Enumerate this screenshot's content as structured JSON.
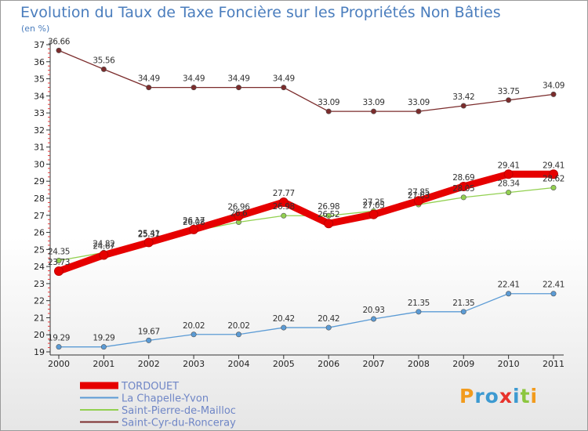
{
  "title": "Evolution du Taux de Taxe Foncière sur les Propriétés Non Bâties",
  "unit_label": "(en %)",
  "brand": "Proxiti",
  "chart_data": {
    "type": "line",
    "title": "Evolution du Taux de Taxe Foncière sur les Propriétés Non Bâties",
    "ylabel": "(en %)",
    "xlabel": "",
    "x": [
      "2000",
      "2001",
      "2002",
      "2003",
      "2004",
      "2005",
      "2006",
      "2007",
      "2008",
      "2009",
      "2010",
      "2011"
    ],
    "ylim": [
      19,
      37
    ],
    "yticks": [
      19,
      20,
      21,
      22,
      23,
      24,
      25,
      26,
      27,
      28,
      29,
      30,
      31,
      32,
      33,
      34,
      35,
      36,
      37
    ],
    "grid": false,
    "legend_position": "bottom-left",
    "series": [
      {
        "name": "TORDOUET",
        "color": "#e60000",
        "values": [
          23.73,
          24.67,
          25.41,
          26.17,
          26.96,
          27.77,
          26.52,
          27.05,
          27.85,
          28.69,
          29.41,
          29.41
        ],
        "labels": [
          "23.73",
          "24.67",
          "25.41",
          "26.17",
          "26.96",
          "27.77",
          "26.52",
          "27.05",
          "27.85",
          "28.69",
          "29.41",
          "29.41"
        ]
      },
      {
        "name": "La Chapelle-Yvon",
        "color": "#5b9bd5",
        "values": [
          19.29,
          19.29,
          19.67,
          20.02,
          20.02,
          20.42,
          20.42,
          20.93,
          21.35,
          21.35,
          22.41,
          22.41
        ],
        "labels": [
          "19.29",
          "19.29",
          "19.67",
          "20.02",
          "20.02",
          "20.42",
          "20.42",
          "20.93",
          "21.35",
          "21.35",
          "22.41",
          "22.41"
        ]
      },
      {
        "name": "Saint-Pierre-de-Mailloc",
        "color": "#92d050",
        "values": [
          24.35,
          24.82,
          25.37,
          26.08,
          26.6,
          26.98,
          26.98,
          27.25,
          27.63,
          28.05,
          28.34,
          28.62
        ],
        "labels": [
          "24.35",
          "24.82",
          "25.37",
          "26.08",
          "26.6",
          "26.98",
          "26.98",
          "27.25",
          "27.63",
          "28.05",
          "28.34",
          "28.62"
        ]
      },
      {
        "name": "Saint-Cyr-du-Ronceray",
        "color": "#7b2c2c",
        "values": [
          36.66,
          35.56,
          34.49,
          34.49,
          34.49,
          34.49,
          33.09,
          33.09,
          33.09,
          33.42,
          33.75,
          34.09
        ],
        "labels": [
          "36.66",
          "35.56",
          "34.49",
          "34.49",
          "34.49",
          "34.49",
          "33.09",
          "33.09",
          "33.09",
          "33.42",
          "33.75",
          "34.09"
        ]
      }
    ]
  }
}
